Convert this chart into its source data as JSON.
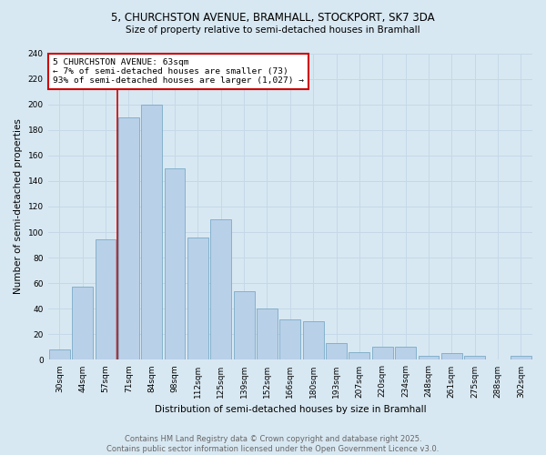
{
  "title1": "5, CHURCHSTON AVENUE, BRAMHALL, STOCKPORT, SK7 3DA",
  "title2": "Size of property relative to semi-detached houses in Bramhall",
  "xlabel": "Distribution of semi-detached houses by size in Bramhall",
  "ylabel": "Number of semi-detached properties",
  "categories": [
    "30sqm",
    "44sqm",
    "57sqm",
    "71sqm",
    "84sqm",
    "98sqm",
    "112sqm",
    "125sqm",
    "139sqm",
    "152sqm",
    "166sqm",
    "180sqm",
    "193sqm",
    "207sqm",
    "220sqm",
    "234sqm",
    "248sqm",
    "261sqm",
    "275sqm",
    "288sqm",
    "302sqm"
  ],
  "values": [
    8,
    57,
    94,
    190,
    200,
    150,
    96,
    110,
    54,
    40,
    32,
    30,
    13,
    6,
    10,
    10,
    3,
    5,
    3,
    0,
    3
  ],
  "bar_color": "#b8d0e8",
  "bar_edge_color": "#7aaac8",
  "annotation_text": "5 CHURCHSTON AVENUE: 63sqm\n← 7% of semi-detached houses are smaller (73)\n93% of semi-detached houses are larger (1,027) →",
  "annotation_box_color": "#ffffff",
  "annotation_box_edge": "#cc0000",
  "vline_color": "#cc0000",
  "vline_x_index": 2,
  "ylim": [
    0,
    240
  ],
  "yticks": [
    0,
    20,
    40,
    60,
    80,
    100,
    120,
    140,
    160,
    180,
    200,
    220,
    240
  ],
  "grid_color": "#c5d8e8",
  "bg_color": "#d8e8f2",
  "title1_fontsize": 8.5,
  "title2_fontsize": 7.5,
  "xlabel_fontsize": 7.5,
  "ylabel_fontsize": 7.5,
  "tick_fontsize": 6.5,
  "ann_fontsize": 6.8,
  "footer": "Contains HM Land Registry data © Crown copyright and database right 2025.\nContains public sector information licensed under the Open Government Licence v3.0.",
  "footer_fontsize": 6.0
}
